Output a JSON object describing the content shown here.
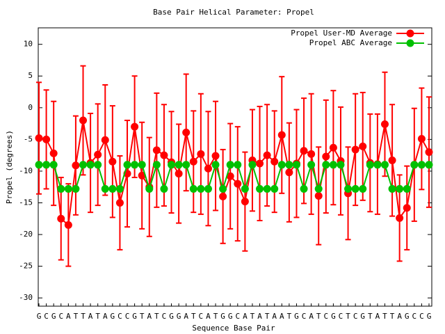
{
  "chart_data": {
    "type": "line",
    "title": "Base Pair Helical Parameter: Propel",
    "x_label": "Sequence Base Pair",
    "y_label": "Propel (degrees)",
    "categories": [
      "G",
      "C",
      "G",
      "C",
      "A",
      "T",
      "T",
      "A",
      "T",
      "A",
      "G",
      "C",
      "C",
      "G",
      "T",
      "A",
      "T",
      "C",
      "G",
      "G",
      "A",
      "T",
      "C",
      "A",
      "T",
      "G",
      "G",
      "C",
      "A",
      "T",
      "A",
      "T",
      "A",
      "A",
      "T",
      "G",
      "C",
      "A",
      "T",
      "C",
      "G",
      "C",
      "T",
      "C",
      "G",
      "T",
      "A",
      "T",
      "T",
      "A",
      "G",
      "C",
      "C",
      "G"
    ],
    "series": [
      {
        "name": "Propel User-MD Average",
        "color": "#ff0000",
        "values": [
          -4.8,
          -5,
          -7.2,
          -17.5,
          -18.5,
          -9.1,
          -2,
          -8.7,
          -7.4,
          -5.1,
          -8.5,
          -15,
          -10.4,
          -3,
          -10.7,
          -12.5,
          -6.7,
          -7.5,
          -8.6,
          -10.4,
          -3.9,
          -8.5,
          -7.3,
          -9.6,
          -7.6,
          -14,
          -10.8,
          -12,
          -14.8,
          -8.3,
          -8.8,
          -7.5,
          -8.5,
          -4.3,
          -10.2,
          -8.8,
          -6.8,
          -7.3,
          -13.9,
          -7.7,
          -6.3,
          -8.4,
          -13.5,
          -6.6,
          -6.1,
          -8.7,
          -8.9,
          -2.6,
          -8.3,
          -17.4,
          -15.8,
          -9,
          -4.9,
          -7
        ],
        "errors": [
          8.8,
          7.8,
          8.2,
          6.5,
          6.5,
          7.8,
          8.6,
          7.8,
          8,
          8.7,
          8.8,
          7.4,
          8.4,
          8,
          8.4,
          7.8,
          9,
          8,
          8,
          7.8,
          9.2,
          8,
          9.5,
          9,
          8.6,
          7.4,
          8.3,
          9,
          7.8,
          8,
          9,
          8,
          8,
          9.2,
          7.8,
          8.5,
          8.3,
          9.5,
          7.7,
          8.9,
          9,
          8.5,
          7.3,
          8.8,
          8.5,
          7.7,
          7.9,
          8.2,
          8.8,
          6.8,
          6.6,
          8.9,
          8,
          8.7
        ]
      },
      {
        "name": "Propel ABC Average",
        "color": "#00c000",
        "values": [
          -9,
          -9,
          -9,
          -12.8,
          -12.8,
          -12.8,
          -9,
          -9,
          -9,
          -12.8,
          -12.8,
          -12.8,
          -9,
          -9,
          -9,
          -12.8,
          -9,
          -12.8,
          -9,
          -9,
          -9,
          -12.8,
          -12.8,
          -12.8,
          -9,
          -12.8,
          -9,
          -9,
          -12.8,
          -9,
          -12.8,
          -12.8,
          -12.8,
          -9,
          -9,
          -9,
          -12.8,
          -9,
          -12.8,
          -9,
          -9,
          -9,
          -12.8,
          -12.8,
          -12.8,
          -9,
          -9,
          -9,
          -12.8,
          -12.8,
          -12.8,
          -9,
          -9,
          -9
        ]
      }
    ],
    "ylim": [
      -31.3,
      12.6
    ],
    "yticks": [
      -30,
      -25,
      -20,
      -15,
      -10,
      -5,
      0,
      5,
      10
    ],
    "legend": "top right"
  }
}
